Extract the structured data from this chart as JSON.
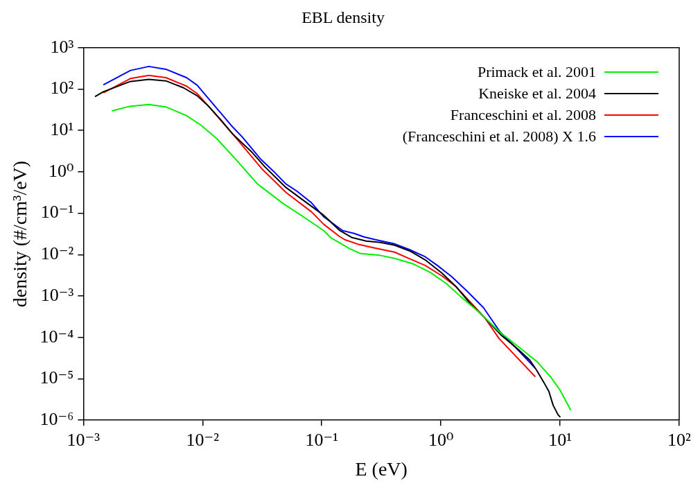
{
  "chart_data": {
    "type": "line",
    "title": "EBL density",
    "xlabel": "E (eV)",
    "ylabel": "density (#/cm³/eV)",
    "log": "xy",
    "legend": "top right",
    "xlim": [
      0.001,
      100
    ],
    "ylim": [
      1e-06,
      1000
    ],
    "xticks": [
      {
        "value": 0.001,
        "label": "10⁻³"
      },
      {
        "value": 0.01,
        "label": "10⁻²"
      },
      {
        "value": 0.1,
        "label": "10⁻¹"
      },
      {
        "value": 1,
        "label": "10⁰"
      },
      {
        "value": 10,
        "label": "10¹"
      },
      {
        "value": 100,
        "label": "10²"
      }
    ],
    "yticks": [
      {
        "value": 1e-06,
        "label": "10⁻⁶"
      },
      {
        "value": 1e-05,
        "label": "10⁻⁵"
      },
      {
        "value": 0.0001,
        "label": "10⁻⁴"
      },
      {
        "value": 0.001,
        "label": "10⁻³"
      },
      {
        "value": 0.01,
        "label": "10⁻²"
      },
      {
        "value": 0.1,
        "label": "10⁻¹"
      },
      {
        "value": 1,
        "label": "10⁰"
      },
      {
        "value": 10,
        "label": "10¹"
      },
      {
        "value": 100,
        "label": "10²"
      },
      {
        "value": 1000,
        "label": "10³"
      }
    ],
    "series": [
      {
        "name": "Primack et al. 2001",
        "color": "#00ee00",
        "x": [
          0.00173,
          0.00244,
          0.00354,
          0.00492,
          0.00733,
          0.00964,
          0.0132,
          0.0191,
          0.0289,
          0.0474,
          0.0716,
          0.104,
          0.119,
          0.172,
          0.212,
          0.299,
          0.409,
          0.593,
          0.813,
          1.11,
          1.47,
          2.12,
          3.08,
          4.4,
          6.38,
          8.4,
          10.05,
          12.3
        ],
        "values": [
          29.6,
          38.3,
          42.4,
          37.2,
          22.8,
          13.6,
          6.3,
          1.97,
          0.51,
          0.172,
          0.079,
          0.038,
          0.0258,
          0.0139,
          0.0106,
          0.0098,
          0.0081,
          0.0059,
          0.00373,
          0.00201,
          0.00096,
          0.000395,
          0.000139,
          6.2e-05,
          2.63e-05,
          1.08e-05,
          5.2e-06,
          1.75e-06
        ]
      },
      {
        "name": "Kneiske et al. 2004",
        "color": "#000000",
        "x": [
          0.00125,
          0.00147,
          0.00244,
          0.00354,
          0.00492,
          0.00693,
          0.009,
          0.0112,
          0.0141,
          0.0179,
          0.0262,
          0.0332,
          0.05,
          0.0659,
          0.104,
          0.142,
          0.18,
          0.236,
          0.311,
          0.409,
          0.561,
          0.737,
          1.02,
          1.35,
          1.77,
          2.33,
          3.19,
          4.4,
          5.56,
          6.38,
          7.31,
          8.05,
          8.75,
          9.64,
          10.05
        ],
        "values": [
          66,
          86,
          151,
          171,
          158,
          107,
          69,
          38.7,
          18.6,
          8.2,
          2.9,
          1.34,
          0.42,
          0.234,
          0.089,
          0.038,
          0.0258,
          0.0213,
          0.0197,
          0.0169,
          0.0119,
          0.0075,
          0.00359,
          0.00165,
          0.00065,
          0.0003,
          0.000115,
          5.3e-05,
          2.84e-05,
          1.59e-05,
          8.2e-06,
          4.98e-06,
          2.3e-06,
          1.34e-06,
          1.19e-06
        ]
      },
      {
        "name": "Franceschini et al. 2008",
        "color": "#ff0000",
        "x": [
          0.00147,
          0.00248,
          0.00354,
          0.00492,
          0.00733,
          0.009,
          0.0112,
          0.0179,
          0.0314,
          0.05,
          0.082,
          0.104,
          0.14,
          0.156,
          0.206,
          0.282,
          0.409,
          0.539,
          0.737,
          1.02,
          1.35,
          1.77,
          2.33,
          3.08,
          6.2
        ],
        "values": [
          81,
          180,
          215,
          189,
          118,
          78,
          38.7,
          8.2,
          1.19,
          0.32,
          0.108,
          0.054,
          0.0279,
          0.023,
          0.0175,
          0.0144,
          0.0115,
          0.0081,
          0.0055,
          0.00307,
          0.00165,
          0.00071,
          0.0003,
          9.4e-05,
          1.12e-05
        ]
      },
      {
        "name": "(Franceschini et al. 2008) X 1.6",
        "color": "#0000ff",
        "x": [
          0.00147,
          0.00248,
          0.00354,
          0.00492,
          0.00733,
          0.009,
          0.0112,
          0.0141,
          0.0179,
          0.0214,
          0.031,
          0.0396,
          0.05,
          0.0616,
          0.082,
          0.104,
          0.15,
          0.187,
          0.226,
          0.282,
          0.409,
          0.539,
          0.728,
          0.933,
          1.23,
          1.68,
          2.28,
          3.12,
          4.4,
          6.2
        ],
        "values": [
          127,
          282,
          352,
          301,
          189,
          124,
          59,
          27,
          12.1,
          7.1,
          1.97,
          1.02,
          0.51,
          0.345,
          0.179,
          0.082,
          0.038,
          0.0326,
          0.0269,
          0.023,
          0.0182,
          0.0134,
          0.0091,
          0.0055,
          0.00296,
          0.00126,
          0.00052,
          0.000139,
          5.1e-05,
          1.79e-05
        ]
      }
    ]
  }
}
